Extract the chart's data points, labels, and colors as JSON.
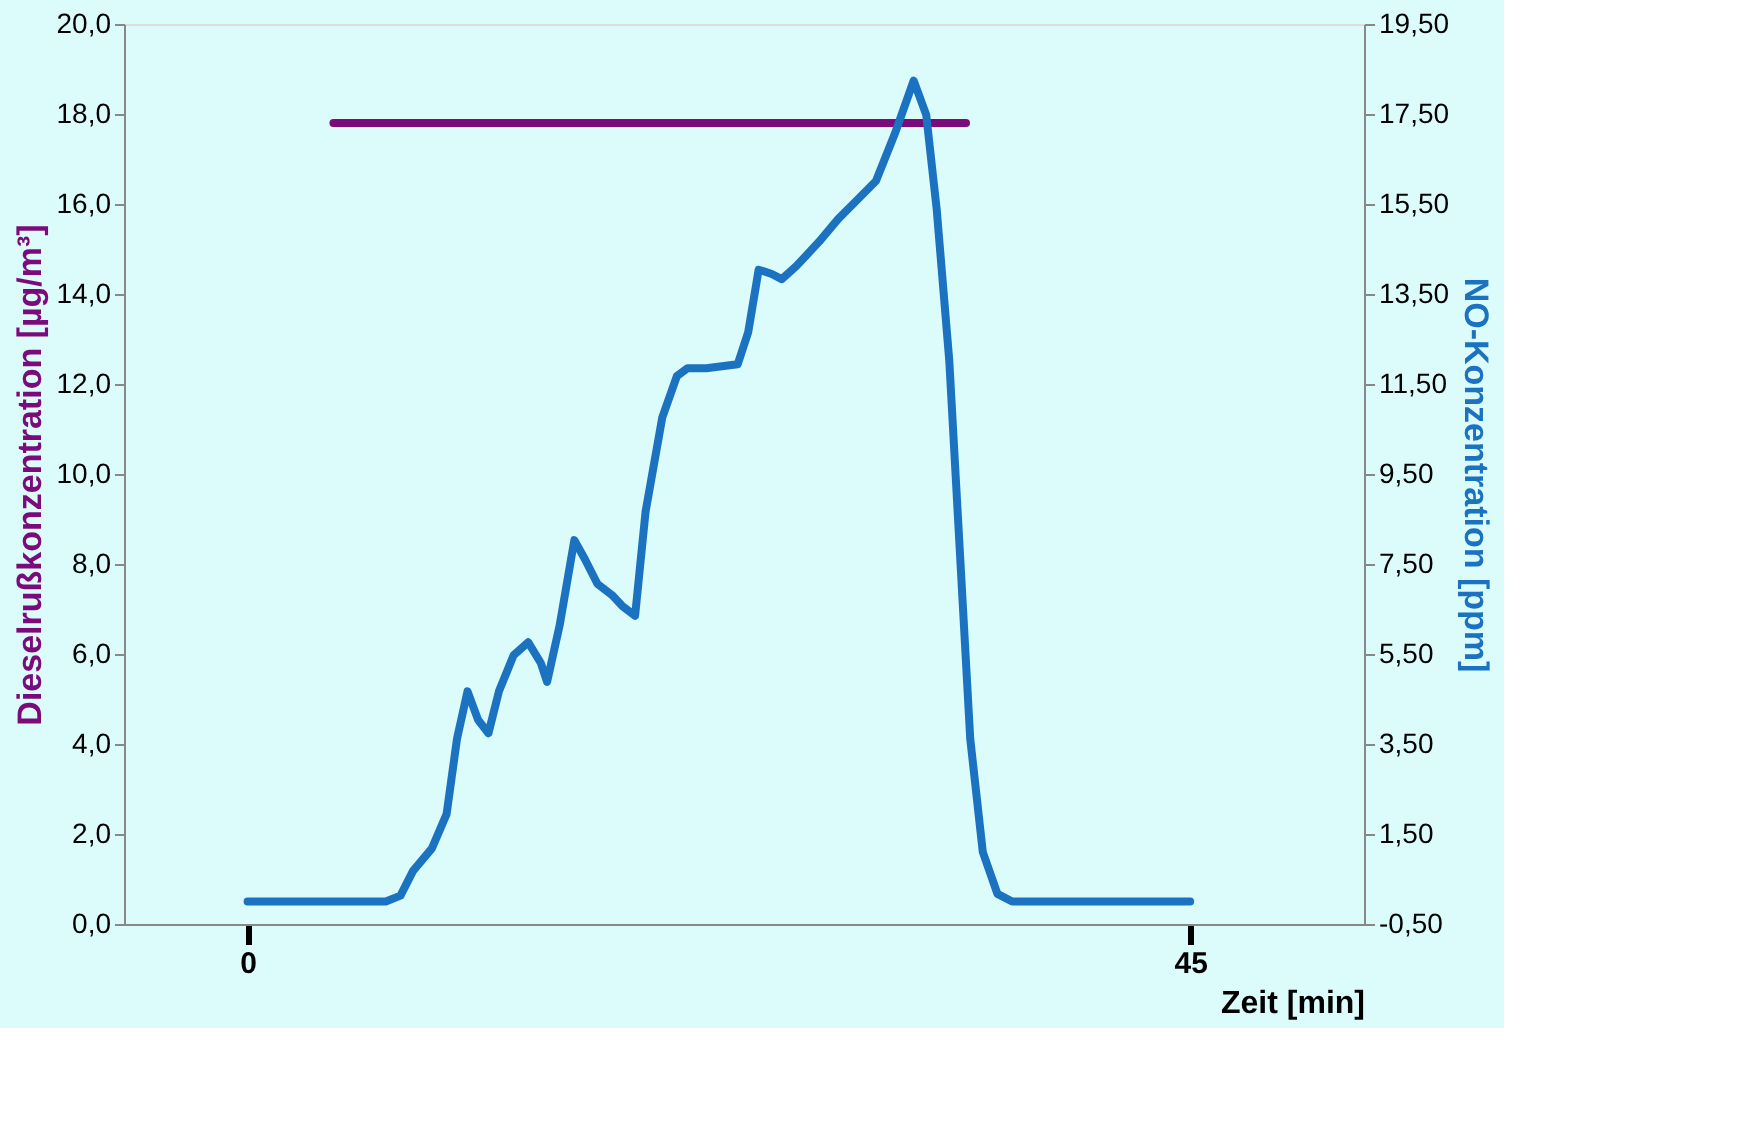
{
  "chart_data": {
    "type": "line",
    "xlabel": "Zeit [min]",
    "ylabel": "Dieselrußkonzentration [µg/m³]",
    "y2label": "NO-Konzentration [ppm]",
    "xlim": [
      -5.9,
      53.3
    ],
    "xticks": [
      0,
      45
    ],
    "ylim": [
      0,
      20
    ],
    "yticks": [
      {
        "value": 0,
        "label": "0,0"
      },
      {
        "value": 2,
        "label": "2,0"
      },
      {
        "value": 4,
        "label": "4,0"
      },
      {
        "value": 6,
        "label": "6,0"
      },
      {
        "value": 8,
        "label": "8,0"
      },
      {
        "value": 10,
        "label": "10,0"
      },
      {
        "value": 12,
        "label": "12,0"
      },
      {
        "value": 14,
        "label": "14,0"
      },
      {
        "value": 16,
        "label": "16,0"
      },
      {
        "value": 18,
        "label": "18,0"
      },
      {
        "value": 20,
        "label": "20,0"
      }
    ],
    "y2lim": [
      -0.5,
      19.5
    ],
    "y2ticks": [
      {
        "value": -0.5,
        "label": "-0,50"
      },
      {
        "value": 1.5,
        "label": "1,50"
      },
      {
        "value": 3.5,
        "label": "3,50"
      },
      {
        "value": 5.5,
        "label": "5,50"
      },
      {
        "value": 7.5,
        "label": "7,50"
      },
      {
        "value": 9.5,
        "label": "9,50"
      },
      {
        "value": 11.5,
        "label": "11,50"
      },
      {
        "value": 13.5,
        "label": "13,50"
      },
      {
        "value": 15.5,
        "label": "15,50"
      },
      {
        "value": 17.5,
        "label": "17,50"
      },
      {
        "value": 19.5,
        "label": "19,50"
      }
    ],
    "grid": false,
    "marker": "none",
    "line_style": "solid",
    "series": [
      {
        "color": "#7b0a7b",
        "x": [
          4.1,
          34.3
        ],
        "values": [
          17.8,
          17.8
        ]
      },
      {
        "color": "#1a72c0",
        "axis": "y2",
        "x": [
          0,
          6.6,
          7.3,
          7.9,
          8.8,
          9.5,
          10.0,
          10.5,
          11.0,
          11.5,
          12.0,
          12.7,
          13.4,
          14.0,
          14.3,
          14.9,
          15.6,
          16.1,
          16.7,
          17.4,
          17.9,
          18.5,
          19.0,
          19.8,
          20.5,
          21.0,
          21.9,
          23.4,
          23.9,
          24.4,
          25.0,
          25.5,
          26.2,
          27.3,
          28.2,
          29.1,
          30.0,
          30.9,
          31.8,
          32.4,
          32.9,
          33.5,
          34.0,
          34.5,
          35.1,
          35.8,
          36.5,
          45
        ],
        "values": [
          0.0,
          0.0,
          0.13,
          0.68,
          1.18,
          1.94,
          3.62,
          4.67,
          4.04,
          3.74,
          4.67,
          5.47,
          5.76,
          5.3,
          4.88,
          6.14,
          8.03,
          7.61,
          7.06,
          6.81,
          6.56,
          6.35,
          8.66,
          10.76,
          11.68,
          11.85,
          11.85,
          11.94,
          12.65,
          14.04,
          13.95,
          13.83,
          14.12,
          14.67,
          15.17,
          15.59,
          16.01,
          17.06,
          18.24,
          17.48,
          15.38,
          12.02,
          7.82,
          3.62,
          1.1,
          0.17,
          0.0,
          0.0
        ]
      }
    ]
  }
}
